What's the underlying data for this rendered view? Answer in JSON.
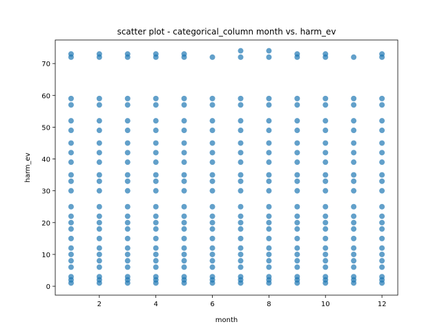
{
  "chart_data": {
    "type": "scatter",
    "title": "scatter plot - categorical_column month vs. harm_ev",
    "xlabel": "month",
    "ylabel": "harm_ev",
    "xlim": [
      0.44,
      12.56
    ],
    "ylim": [
      -2.8,
      77.4
    ],
    "xticks": [
      2,
      4,
      6,
      8,
      10,
      12
    ],
    "yticks": [
      0,
      10,
      20,
      30,
      40,
      50,
      60,
      70
    ],
    "color": "#1f77b4",
    "x": [
      1,
      1,
      1,
      1,
      1,
      1,
      1,
      1,
      1,
      1,
      1,
      1,
      1,
      1,
      1,
      1,
      1,
      1,
      1,
      1,
      1,
      1,
      1,
      1,
      2,
      2,
      2,
      2,
      2,
      2,
      2,
      2,
      2,
      2,
      2,
      2,
      2,
      2,
      2,
      2,
      2,
      2,
      2,
      2,
      2,
      2,
      2,
      2,
      3,
      3,
      3,
      3,
      3,
      3,
      3,
      3,
      3,
      3,
      3,
      3,
      3,
      3,
      3,
      3,
      3,
      3,
      3,
      3,
      3,
      3,
      3,
      3,
      4,
      4,
      4,
      4,
      4,
      4,
      4,
      4,
      4,
      4,
      4,
      4,
      4,
      4,
      4,
      4,
      4,
      4,
      4,
      4,
      4,
      4,
      4,
      4,
      5,
      5,
      5,
      5,
      5,
      5,
      5,
      5,
      5,
      5,
      5,
      5,
      5,
      5,
      5,
      5,
      5,
      5,
      5,
      5,
      5,
      5,
      5,
      5,
      6,
      6,
      6,
      6,
      6,
      6,
      6,
      6,
      6,
      6,
      6,
      6,
      6,
      6,
      6,
      6,
      6,
      6,
      6,
      6,
      6,
      6,
      6,
      7,
      7,
      7,
      7,
      7,
      7,
      7,
      7,
      7,
      7,
      7,
      7,
      7,
      7,
      7,
      7,
      7,
      7,
      7,
      7,
      7,
      7,
      7,
      7,
      8,
      8,
      8,
      8,
      8,
      8,
      8,
      8,
      8,
      8,
      8,
      8,
      8,
      8,
      8,
      8,
      8,
      8,
      8,
      8,
      8,
      8,
      8,
      8,
      9,
      9,
      9,
      9,
      9,
      9,
      9,
      9,
      9,
      9,
      9,
      9,
      9,
      9,
      9,
      9,
      9,
      9,
      9,
      9,
      9,
      9,
      9,
      9,
      10,
      10,
      10,
      10,
      10,
      10,
      10,
      10,
      10,
      10,
      10,
      10,
      10,
      10,
      10,
      10,
      10,
      10,
      10,
      10,
      10,
      10,
      10,
      10,
      11,
      11,
      11,
      11,
      11,
      11,
      11,
      11,
      11,
      11,
      11,
      11,
      11,
      11,
      11,
      11,
      11,
      11,
      11,
      11,
      11,
      11,
      11,
      12,
      12,
      12,
      12,
      12,
      12,
      12,
      12,
      12,
      12,
      12,
      12,
      12,
      12,
      12,
      12,
      12,
      12,
      12,
      12,
      12,
      12,
      12,
      12
    ],
    "values": [
      1,
      2,
      3,
      6,
      8,
      10,
      12,
      15,
      18,
      20,
      22,
      25,
      30,
      33,
      35,
      39,
      42,
      45,
      49,
      52,
      57,
      59,
      72,
      73,
      1,
      2,
      3,
      6,
      8,
      10,
      12,
      15,
      18,
      20,
      22,
      25,
      30,
      33,
      35,
      39,
      42,
      45,
      49,
      52,
      57,
      59,
      72,
      73,
      1,
      2,
      3,
      6,
      8,
      10,
      12,
      15,
      18,
      20,
      22,
      25,
      30,
      33,
      35,
      39,
      42,
      45,
      49,
      52,
      57,
      59,
      72,
      73,
      1,
      2,
      3,
      6,
      8,
      10,
      12,
      15,
      18,
      20,
      22,
      25,
      30,
      33,
      35,
      39,
      42,
      45,
      49,
      52,
      57,
      59,
      72,
      73,
      1,
      2,
      3,
      6,
      8,
      10,
      12,
      15,
      18,
      20,
      22,
      25,
      30,
      33,
      35,
      39,
      42,
      45,
      49,
      52,
      57,
      59,
      72,
      73,
      1,
      2,
      3,
      6,
      8,
      10,
      12,
      15,
      18,
      20,
      22,
      25,
      30,
      33,
      35,
      39,
      42,
      45,
      49,
      52,
      57,
      59,
      72,
      1,
      2,
      3,
      6,
      8,
      10,
      12,
      15,
      18,
      20,
      22,
      25,
      30,
      33,
      35,
      39,
      42,
      45,
      49,
      52,
      57,
      59,
      72,
      74,
      1,
      2,
      3,
      6,
      8,
      10,
      12,
      15,
      18,
      20,
      22,
      25,
      30,
      33,
      35,
      39,
      42,
      45,
      49,
      52,
      57,
      59,
      72,
      74,
      1,
      2,
      3,
      6,
      8,
      10,
      12,
      15,
      18,
      20,
      22,
      25,
      30,
      33,
      35,
      39,
      42,
      45,
      49,
      52,
      57,
      59,
      72,
      73,
      1,
      2,
      3,
      6,
      8,
      10,
      12,
      15,
      18,
      20,
      22,
      25,
      30,
      33,
      35,
      39,
      42,
      45,
      49,
      52,
      57,
      59,
      72,
      73,
      1,
      2,
      3,
      6,
      8,
      10,
      12,
      15,
      18,
      20,
      22,
      25,
      30,
      33,
      35,
      39,
      42,
      45,
      49,
      52,
      57,
      59,
      72,
      1,
      2,
      3,
      6,
      8,
      10,
      12,
      15,
      18,
      20,
      22,
      25,
      30,
      33,
      35,
      39,
      42,
      45,
      49,
      52,
      57,
      59,
      72,
      73
    ]
  }
}
